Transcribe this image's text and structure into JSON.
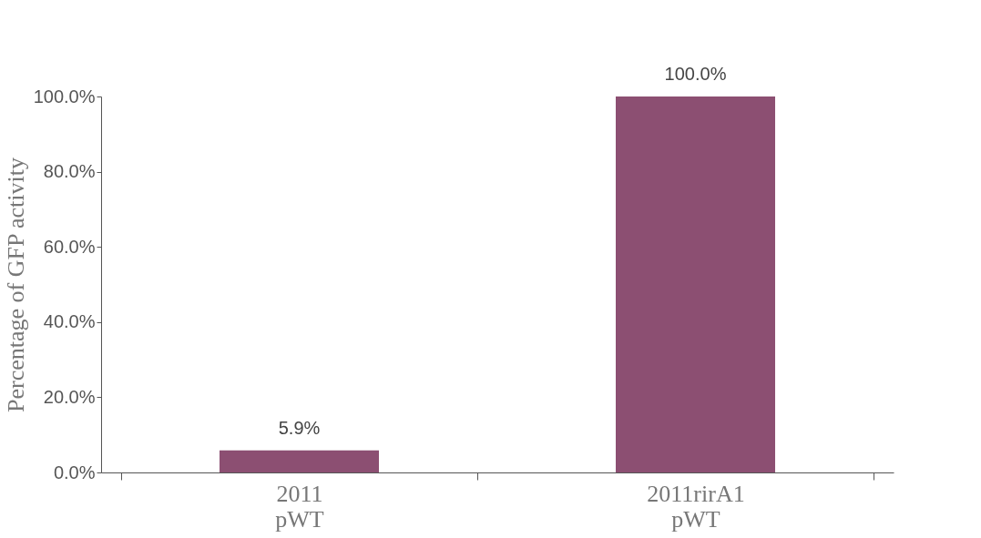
{
  "chart_data": {
    "type": "bar",
    "ylabel": "Percentage of GFP activity",
    "categories": [
      "2011\npWT",
      "2011rirA1\npWT"
    ],
    "values": [
      5.9,
      100
    ],
    "value_labels": [
      "5.9%",
      "100.0%"
    ],
    "color": "#8c4f72",
    "ylim": [
      0,
      100
    ],
    "yticks": [
      {
        "value": 0,
        "label": "0.0%"
      },
      {
        "value": 20,
        "label": "20.0%"
      },
      {
        "value": 40,
        "label": "40.0%"
      },
      {
        "value": 60,
        "label": "60.0%"
      },
      {
        "value": 80,
        "label": "80.0%"
      },
      {
        "value": 100,
        "label": "100.0%"
      }
    ],
    "grid": false
  }
}
